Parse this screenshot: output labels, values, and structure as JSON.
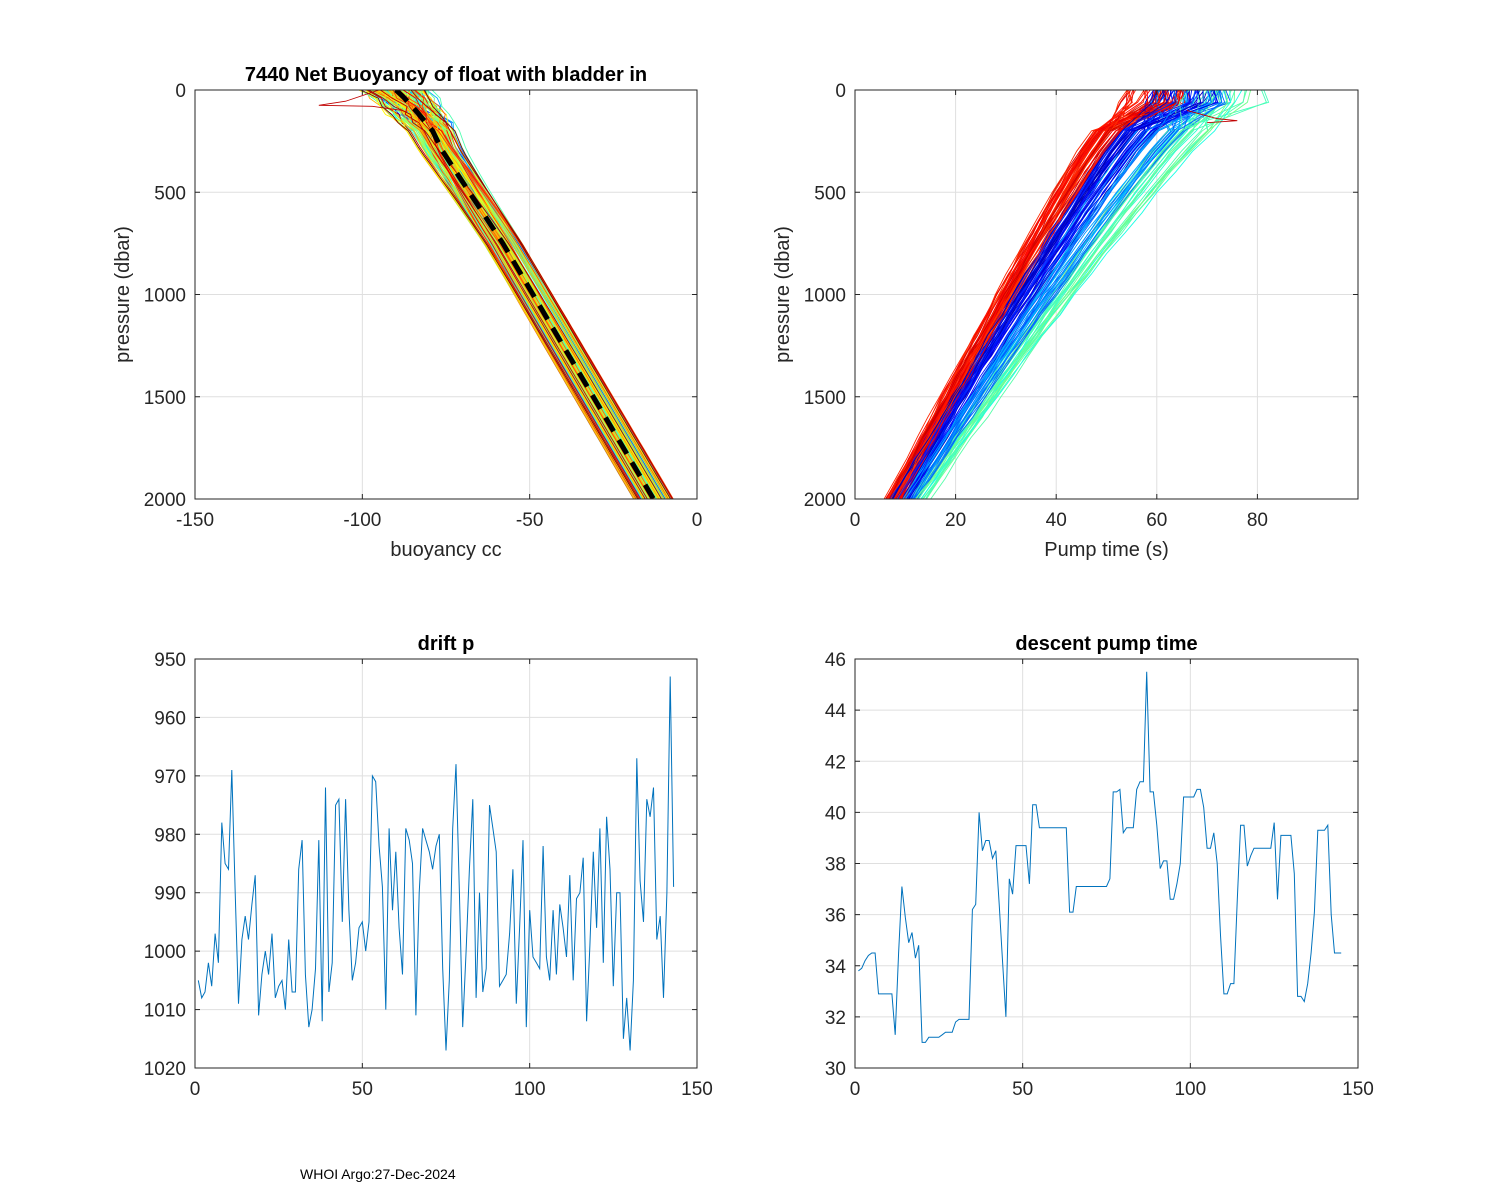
{
  "footer": "WHOI Argo:27-Dec-2024",
  "colors": {
    "axis": "#262626",
    "grid": "#dfdfdf",
    "line": "#0072BD",
    "mean": "#000000"
  },
  "chart_data": [
    {
      "id": "buoyancy",
      "type": "line",
      "title": "7440 Net Buoyancy of float with bladder in",
      "xlabel": "buoyancy cc",
      "ylabel": "pressure (dbar)",
      "xlim": [
        -150,
        0
      ],
      "ylim": [
        0,
        2000
      ],
      "y_reversed": true,
      "xticks": [
        -150,
        -100,
        -50,
        0
      ],
      "yticks": [
        0,
        500,
        1000,
        1500,
        2000
      ],
      "grid": true,
      "profile_count": 145,
      "mean_profile": {
        "x": [
          -90,
          -88,
          -84,
          -79,
          -76,
          -72,
          -66,
          -58,
          -49,
          -40,
          -31,
          -22,
          -13
        ],
        "y": [
          0,
          30,
          100,
          200,
          300,
          400,
          550,
          750,
          1000,
          1250,
          1500,
          1750,
          2000
        ]
      },
      "series_envelope": {
        "x_at_0_min": -100,
        "x_at_0_max": -75,
        "x_at_2000_min": -18,
        "x_at_2000_max": -8
      }
    },
    {
      "id": "pumptime",
      "type": "line",
      "title": "",
      "xlabel": "Pump time (s)",
      "ylabel": "pressure (dbar)",
      "xlim": [
        0,
        100
      ],
      "ylim": [
        0,
        2000
      ],
      "y_reversed": true,
      "xticks": [
        0,
        20,
        40,
        60,
        80
      ],
      "yticks": [
        0,
        500,
        1000,
        1500,
        2000
      ],
      "grid": true,
      "profile_count": 145,
      "series_envelope": {
        "x_at_0_min": 52,
        "x_at_0_max": 82,
        "x_at_2000_min": 6,
        "x_at_2000_max": 14
      }
    },
    {
      "id": "driftp",
      "type": "line",
      "title": "drift p",
      "xlabel": "",
      "ylabel": "",
      "xlim": [
        0,
        150
      ],
      "ylim": [
        950,
        1020
      ],
      "y_reversed": true,
      "xticks": [
        0,
        50,
        100,
        150
      ],
      "yticks": [
        950,
        960,
        970,
        980,
        990,
        1000,
        1010,
        1020
      ],
      "grid": true,
      "x_start": 1,
      "values": [
        1005,
        1008,
        1007,
        1002,
        1006,
        997,
        1002,
        978,
        985,
        986,
        969,
        990,
        1009,
        998,
        994,
        998,
        992,
        987,
        1011,
        1004,
        1000,
        1004,
        997,
        1008,
        1006,
        1005,
        1010,
        998,
        1007,
        1007,
        986,
        981,
        1004,
        1013,
        1010,
        1003,
        981,
        1012,
        972,
        1007,
        1002,
        975,
        974,
        995,
        974,
        993,
        1005,
        1002,
        996,
        995,
        1000,
        995,
        970,
        971,
        982,
        989,
        1010,
        979,
        993,
        983,
        996,
        1004,
        979,
        981,
        985,
        1011,
        990,
        979,
        981,
        983,
        986,
        982,
        980,
        1003,
        1017,
        1005,
        979,
        968,
        990,
        1013,
        1000,
        986,
        974,
        1008,
        990,
        1007,
        1003,
        975,
        979,
        983,
        1006,
        1005,
        1004,
        997,
        986,
        1009,
        996,
        981,
        1013,
        993,
        1001,
        1002,
        1003,
        982,
        1001,
        1005,
        993,
        1004,
        992,
        996,
        1001,
        987,
        1005,
        991,
        990,
        984,
        1012,
        999,
        983,
        996,
        979,
        1002,
        977,
        986,
        1006,
        990,
        990,
        1015,
        1008,
        1017,
        1005,
        967,
        988,
        995,
        974,
        977,
        972,
        998,
        994,
        1008,
        990,
        953,
        989
      ]
    },
    {
      "id": "descentpump",
      "type": "line",
      "title": "descent pump time",
      "xlabel": "",
      "ylabel": "",
      "xlim": [
        0,
        150
      ],
      "ylim": [
        30,
        46
      ],
      "y_reversed": false,
      "xticks": [
        0,
        50,
        100,
        150
      ],
      "yticks": [
        30,
        32,
        34,
        36,
        38,
        40,
        42,
        44,
        46
      ],
      "grid": true,
      "x_start": 1,
      "values": [
        33.8,
        33.9,
        34.2,
        34.4,
        34.5,
        34.5,
        32.9,
        32.9,
        32.9,
        32.9,
        32.9,
        31.3,
        34.5,
        37.1,
        35.9,
        34.9,
        35.3,
        34.3,
        34.8,
        31.0,
        31.0,
        31.2,
        31.2,
        31.2,
        31.2,
        31.3,
        31.4,
        31.4,
        31.4,
        31.8,
        31.9,
        31.9,
        31.9,
        31.9,
        36.2,
        36.4,
        40.0,
        38.5,
        38.9,
        38.9,
        38.2,
        38.5,
        36.4,
        34.2,
        32.0,
        37.4,
        36.8,
        38.7,
        38.7,
        38.7,
        38.7,
        37.2,
        40.3,
        40.3,
        39.4,
        39.4,
        39.4,
        39.4,
        39.4,
        39.4,
        39.4,
        39.4,
        39.4,
        36.1,
        36.1,
        37.1,
        37.1,
        37.1,
        37.1,
        37.1,
        37.1,
        37.1,
        37.1,
        37.1,
        37.1,
        37.4,
        40.8,
        40.8,
        40.9,
        39.2,
        39.4,
        39.4,
        39.4,
        40.9,
        41.2,
        41.2,
        45.5,
        40.8,
        40.8,
        39.5,
        37.8,
        38.1,
        38.1,
        36.6,
        36.6,
        37.2,
        38.0,
        40.6,
        40.6,
        40.6,
        40.6,
        40.9,
        40.9,
        40.2,
        38.6,
        38.6,
        39.2,
        38.0,
        35.2,
        32.9,
        32.9,
        33.3,
        33.3,
        36.6,
        39.5,
        39.5,
        37.9,
        38.3,
        38.6,
        38.6,
        38.6,
        38.6,
        38.6,
        38.6,
        39.6,
        36.6,
        39.1,
        39.1,
        39.1,
        39.1,
        37.6,
        32.8,
        32.8,
        32.6,
        33.3,
        34.5,
        36.1,
        39.3,
        39.3,
        39.3,
        39.5,
        36.0,
        34.5,
        34.5,
        34.5
      ]
    }
  ]
}
